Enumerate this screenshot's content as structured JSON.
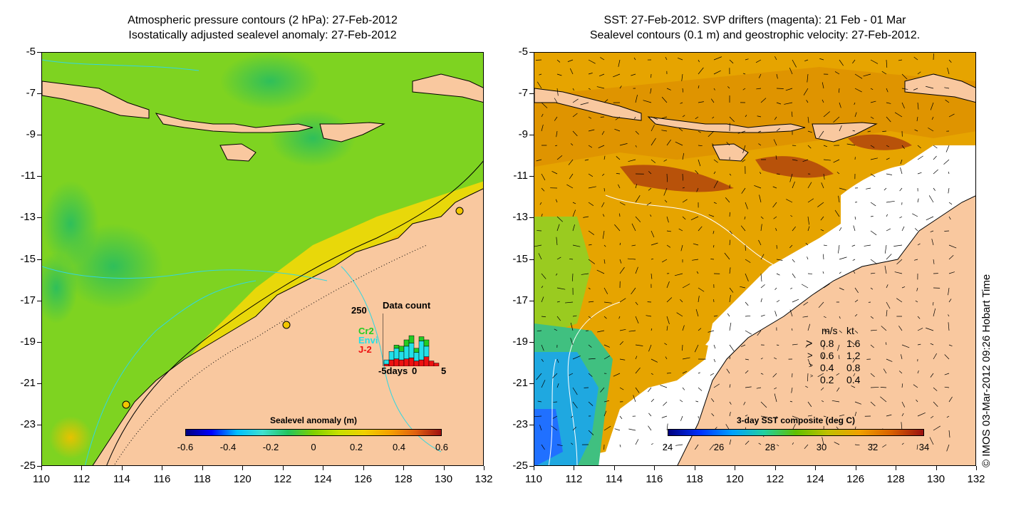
{
  "left_panel": {
    "title_line1": "Atmospheric pressure contours (2 hPa): 27-Feb-2012",
    "title_line2": "Isostatically adjusted sealevel anomaly: 27-Feb-2012",
    "colorbar": {
      "title": "Sealevel anomaly (m)",
      "ticks": [
        "-0.6",
        "-0.4",
        "-0.2",
        "0",
        "0.2",
        "0.4",
        "0.6"
      ]
    },
    "data_count": {
      "title": "Data count",
      "ymax_label": "250",
      "sat_labels": [
        {
          "text": "Cr2",
          "color": "#22cc22"
        },
        {
          "text": "Envi",
          "color": "#22e0e8"
        },
        {
          "text": "J-2",
          "color": "#ee1111"
        }
      ],
      "x_labels": [
        "-5days",
        "0",
        "5"
      ],
      "bars": [
        {
          "red": 10,
          "cyan": 20,
          "green": 0
        },
        {
          "red": 30,
          "cyan": 40,
          "green": 0
        },
        {
          "red": 35,
          "cyan": 50,
          "green": 15
        },
        {
          "red": 30,
          "cyan": 40,
          "green": 25
        },
        {
          "red": 35,
          "cyan": 60,
          "green": 30
        },
        {
          "red": 40,
          "cyan": 70,
          "green": 35
        },
        {
          "red": 25,
          "cyan": 40,
          "green": 20
        },
        {
          "red": 30,
          "cyan": 90,
          "green": 20
        },
        {
          "red": 45,
          "cyan": 50,
          "green": 30
        },
        {
          "red": 25,
          "cyan": 0,
          "green": 0
        },
        {
          "red": 15,
          "cyan": 0,
          "green": 0
        }
      ]
    }
  },
  "right_panel": {
    "title_line1": "SST: 27-Feb-2012. SVP drifters (magenta): 21 Feb - 01 Mar",
    "title_line2": "Sealevel contours (0.1 m) and geostrophic velocity: 27-Feb-2012.",
    "colorbar": {
      "title": "3-day SST composite (deg C)",
      "ticks": [
        "24",
        "26",
        "28",
        "30",
        "32",
        "34"
      ]
    },
    "velocity_legend": {
      "header_ms": "m/s",
      "header_kt": "kt",
      "rows": [
        {
          "ms": "0.8",
          "kt": "1.6"
        },
        {
          "ms": "0.6",
          "kt": "1.2"
        },
        {
          "ms": "0.4",
          "kt": "0.8"
        },
        {
          "ms": "0.2",
          "kt": "0.4"
        }
      ]
    },
    "credit": "© IMOS 03-Mar-2012 09:26 Hobart Time"
  },
  "axes": {
    "y_ticks": [
      "-5",
      "-7",
      "-9",
      "-11",
      "-13",
      "-15",
      "-17",
      "-19",
      "-21",
      "-23",
      "-25"
    ],
    "x_ticks": [
      "110",
      "112",
      "114",
      "116",
      "118",
      "120",
      "122",
      "124",
      "126",
      "128",
      "130",
      "132"
    ]
  },
  "colors": {
    "land": "#f9c89f",
    "sla_colormap": [
      "#00007f",
      "#0000ff",
      "#00bfff",
      "#40e0d0",
      "#22c55e",
      "#7fd000",
      "#c8e000",
      "#f0d000",
      "#f5a000",
      "#e06010",
      "#a01010"
    ],
    "sst_colormap": [
      "#00007f",
      "#0030ff",
      "#00a0ff",
      "#20d0a0",
      "#60c000",
      "#c0c000",
      "#f0a000",
      "#d86000",
      "#9a1010"
    ]
  }
}
